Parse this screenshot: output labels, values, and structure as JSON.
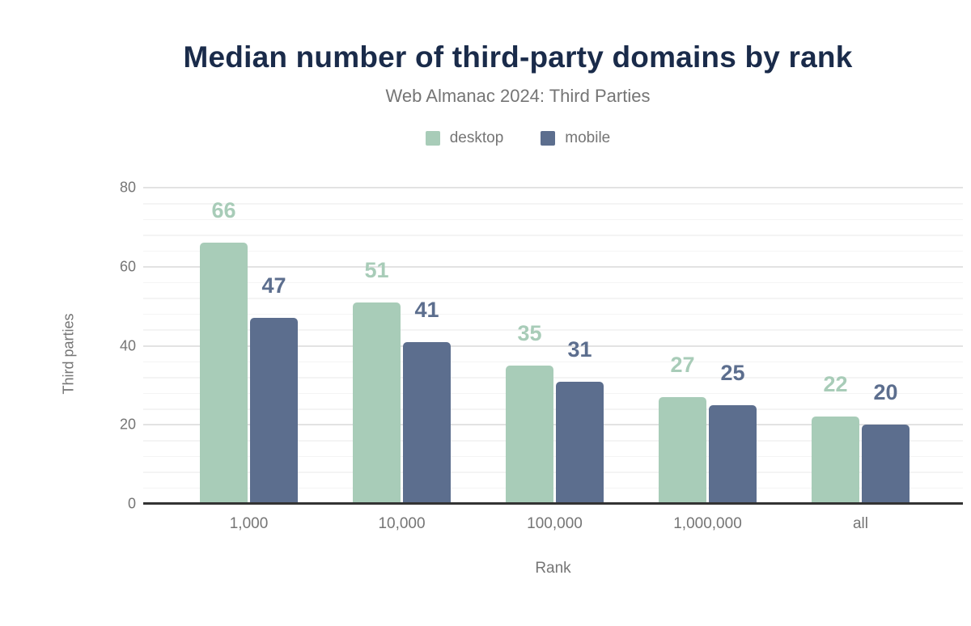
{
  "chart_data": {
    "type": "bar",
    "title": "Median number of third-party domains by rank",
    "subtitle": "Web Almanac 2024: Third Parties",
    "xlabel": "Rank",
    "ylabel": "Third parties",
    "categories": [
      "1,000",
      "10,000",
      "100,000",
      "1,000,000",
      "all"
    ],
    "series": [
      {
        "name": "desktop",
        "color": "#a8ccb8",
        "values": [
          66,
          51,
          35,
          27,
          22
        ]
      },
      {
        "name": "mobile",
        "color": "#5c6e8e",
        "values": [
          47,
          41,
          31,
          25,
          20
        ]
      }
    ],
    "ylim": [
      0,
      80
    ],
    "yticks": [
      0,
      20,
      40,
      60,
      80
    ],
    "minor_grid_step": 4,
    "grid": true,
    "legend_position": "top",
    "value_labels": "above-bars"
  },
  "colors": {
    "title": "#1a2b4a",
    "muted_text": "#757575",
    "axis_line": "#333333",
    "major_gridline": "#e3e3e3",
    "minor_gridline": "#f4f4f4",
    "background": "#ffffff"
  }
}
